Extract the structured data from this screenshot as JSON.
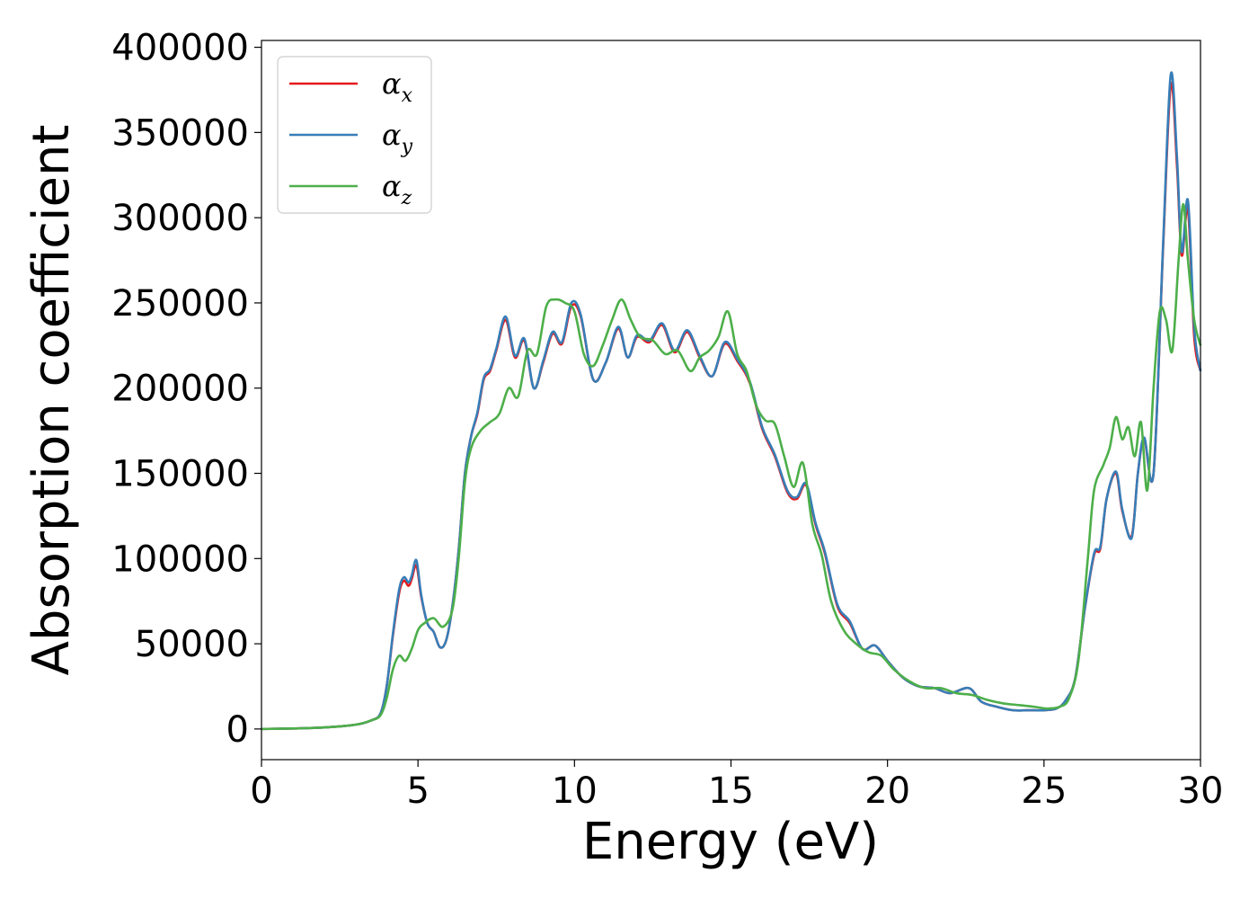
{
  "chart_data": {
    "type": "line",
    "title": "",
    "xlabel": "Energy (eV)",
    "ylabel": "Absorption coefficient",
    "xlim": [
      0,
      30
    ],
    "ylim": [
      -18000,
      404000
    ],
    "xticks": [
      0,
      5,
      10,
      15,
      20,
      25,
      30
    ],
    "yticks": [
      0,
      50000,
      100000,
      150000,
      200000,
      250000,
      300000,
      350000,
      400000
    ],
    "grid": false,
    "legend_position": "top-left",
    "series": [
      {
        "name": "α",
        "subscript": "x",
        "color": "#e41a1c",
        "x": [
          0,
          1,
          2,
          3,
          3.5,
          3.8,
          4.0,
          4.2,
          4.4,
          4.55,
          4.7,
          4.8,
          4.95,
          5.1,
          5.3,
          5.5,
          5.7,
          5.9,
          6.1,
          6.3,
          6.5,
          6.7,
          6.9,
          7.1,
          7.3,
          7.5,
          7.8,
          8.1,
          8.4,
          8.7,
          9.0,
          9.3,
          9.6,
          9.9,
          10.2,
          10.6,
          11.0,
          11.4,
          11.7,
          12.0,
          12.4,
          12.8,
          13.2,
          13.6,
          14.0,
          14.4,
          14.8,
          15.2,
          15.6,
          16.0,
          16.4,
          16.8,
          17.1,
          17.4,
          17.7,
          18.0,
          18.4,
          18.8,
          19.2,
          19.6,
          20.0,
          20.5,
          21.0,
          21.5,
          22.0,
          22.6,
          23.0,
          23.5,
          24.0,
          24.5,
          25.0,
          25.4,
          25.7,
          26.0,
          26.3,
          26.6,
          26.8,
          27.0,
          27.3,
          27.5,
          27.8,
          28.0,
          28.2,
          28.5,
          28.8,
          29.05,
          29.25,
          29.4,
          29.6,
          29.8,
          30.0
        ],
        "y": [
          0,
          300,
          900,
          2500,
          5000,
          9000,
          25000,
          55000,
          80000,
          87000,
          84000,
          88000,
          96000,
          78000,
          62000,
          57000,
          48000,
          52000,
          72000,
          105000,
          150000,
          172000,
          185000,
          205000,
          210000,
          222000,
          240000,
          218000,
          228000,
          200000,
          215000,
          232000,
          226000,
          248000,
          242000,
          205000,
          215000,
          235000,
          218000,
          230000,
          227000,
          237000,
          221000,
          233000,
          218000,
          207000,
          226000,
          216000,
          203000,
          176000,
          160000,
          139000,
          135000,
          143000,
          120000,
          103000,
          72000,
          62000,
          47000,
          49000,
          40000,
          30000,
          25000,
          24000,
          21000,
          24000,
          16000,
          13000,
          11000,
          11000,
          11000,
          12000,
          17000,
          30000,
          70000,
          102000,
          106000,
          135000,
          150000,
          128000,
          113000,
          150000,
          170000,
          150000,
          280000,
          378000,
          330000,
          278000,
          305000,
          230000,
          210000
        ]
      },
      {
        "name": "α",
        "subscript": "y",
        "color": "#377eb8",
        "x": [
          0,
          1,
          2,
          3,
          3.5,
          3.8,
          4.0,
          4.2,
          4.4,
          4.55,
          4.7,
          4.8,
          4.95,
          5.1,
          5.3,
          5.5,
          5.7,
          5.9,
          6.1,
          6.3,
          6.5,
          6.7,
          6.9,
          7.1,
          7.3,
          7.5,
          7.8,
          8.1,
          8.4,
          8.7,
          9.0,
          9.3,
          9.6,
          9.9,
          10.2,
          10.6,
          11.0,
          11.4,
          11.7,
          12.0,
          12.4,
          12.8,
          13.2,
          13.6,
          14.0,
          14.4,
          14.8,
          15.2,
          15.6,
          16.0,
          16.4,
          16.8,
          17.1,
          17.4,
          17.7,
          18.0,
          18.4,
          18.8,
          19.2,
          19.6,
          20.0,
          20.5,
          21.0,
          21.5,
          22.0,
          22.6,
          23.0,
          23.5,
          24.0,
          24.5,
          25.0,
          25.4,
          25.7,
          26.0,
          26.3,
          26.6,
          26.8,
          27.0,
          27.3,
          27.5,
          27.8,
          28.0,
          28.2,
          28.5,
          28.8,
          29.05,
          29.25,
          29.4,
          29.6,
          29.8,
          30.0
        ],
        "y": [
          0,
          300,
          900,
          2500,
          5000,
          9000,
          25000,
          56000,
          82000,
          89000,
          86000,
          90000,
          99000,
          79000,
          62000,
          57000,
          48000,
          52000,
          72000,
          105000,
          150000,
          172000,
          186000,
          206000,
          211000,
          223000,
          242000,
          219000,
          229000,
          200000,
          216000,
          233000,
          227000,
          250000,
          243000,
          205000,
          215000,
          236000,
          218000,
          231000,
          228000,
          238000,
          222000,
          234000,
          219000,
          207000,
          227000,
          217000,
          204000,
          177000,
          161000,
          140000,
          136000,
          144000,
          121000,
          104000,
          73000,
          63000,
          47000,
          49000,
          40000,
          30000,
          25000,
          24000,
          21000,
          24000,
          16000,
          13000,
          11000,
          11000,
          11000,
          12000,
          17000,
          30000,
          70000,
          103000,
          107000,
          135000,
          151000,
          129000,
          112000,
          150000,
          171000,
          150000,
          282000,
          384000,
          335000,
          280000,
          310000,
          235000,
          210000
        ]
      },
      {
        "name": "α",
        "subscript": "z",
        "color": "#4daf4a",
        "x": [
          0,
          1,
          2,
          3,
          3.5,
          3.8,
          4.0,
          4.2,
          4.4,
          4.6,
          4.8,
          5.0,
          5.2,
          5.5,
          5.8,
          6.1,
          6.3,
          6.5,
          6.7,
          7.0,
          7.3,
          7.6,
          7.9,
          8.2,
          8.5,
          8.8,
          9.1,
          9.4,
          9.7,
          10.0,
          10.3,
          10.6,
          10.9,
          11.2,
          11.5,
          11.8,
          12.1,
          12.5,
          12.9,
          13.3,
          13.7,
          14.0,
          14.3,
          14.6,
          14.9,
          15.2,
          15.5,
          15.8,
          16.1,
          16.4,
          16.7,
          17.0,
          17.3,
          17.6,
          17.9,
          18.2,
          18.6,
          19.0,
          19.4,
          19.8,
          20.2,
          20.7,
          21.2,
          21.7,
          22.2,
          22.7,
          23.2,
          23.7,
          24.2,
          24.7,
          25.1,
          25.5,
          25.8,
          26.1,
          26.4,
          26.6,
          26.9,
          27.1,
          27.3,
          27.5,
          27.7,
          27.9,
          28.1,
          28.3,
          28.5,
          28.7,
          28.9,
          29.1,
          29.3,
          29.45,
          29.6,
          29.8,
          30.0
        ],
        "y": [
          0,
          300,
          900,
          2500,
          5000,
          8000,
          18000,
          35000,
          43000,
          40000,
          47000,
          58000,
          62000,
          65000,
          60000,
          70000,
          100000,
          145000,
          165000,
          175000,
          180000,
          185000,
          200000,
          195000,
          222000,
          220000,
          248000,
          252000,
          250000,
          245000,
          220000,
          213000,
          225000,
          240000,
          252000,
          240000,
          230000,
          228000,
          220000,
          222000,
          210000,
          218000,
          222000,
          230000,
          245000,
          220000,
          210000,
          190000,
          181000,
          179000,
          160000,
          142000,
          156000,
          120000,
          102000,
          75000,
          58000,
          50000,
          45000,
          43000,
          35000,
          28000,
          24000,
          24000,
          21000,
          20000,
          17000,
          15000,
          14000,
          13000,
          12000,
          13000,
          18000,
          40000,
          100000,
          140000,
          155000,
          165000,
          183000,
          170000,
          177000,
          160000,
          180000,
          140000,
          200000,
          245000,
          240000,
          222000,
          275000,
          308000,
          275000,
          240000,
          225000
        ]
      }
    ]
  }
}
